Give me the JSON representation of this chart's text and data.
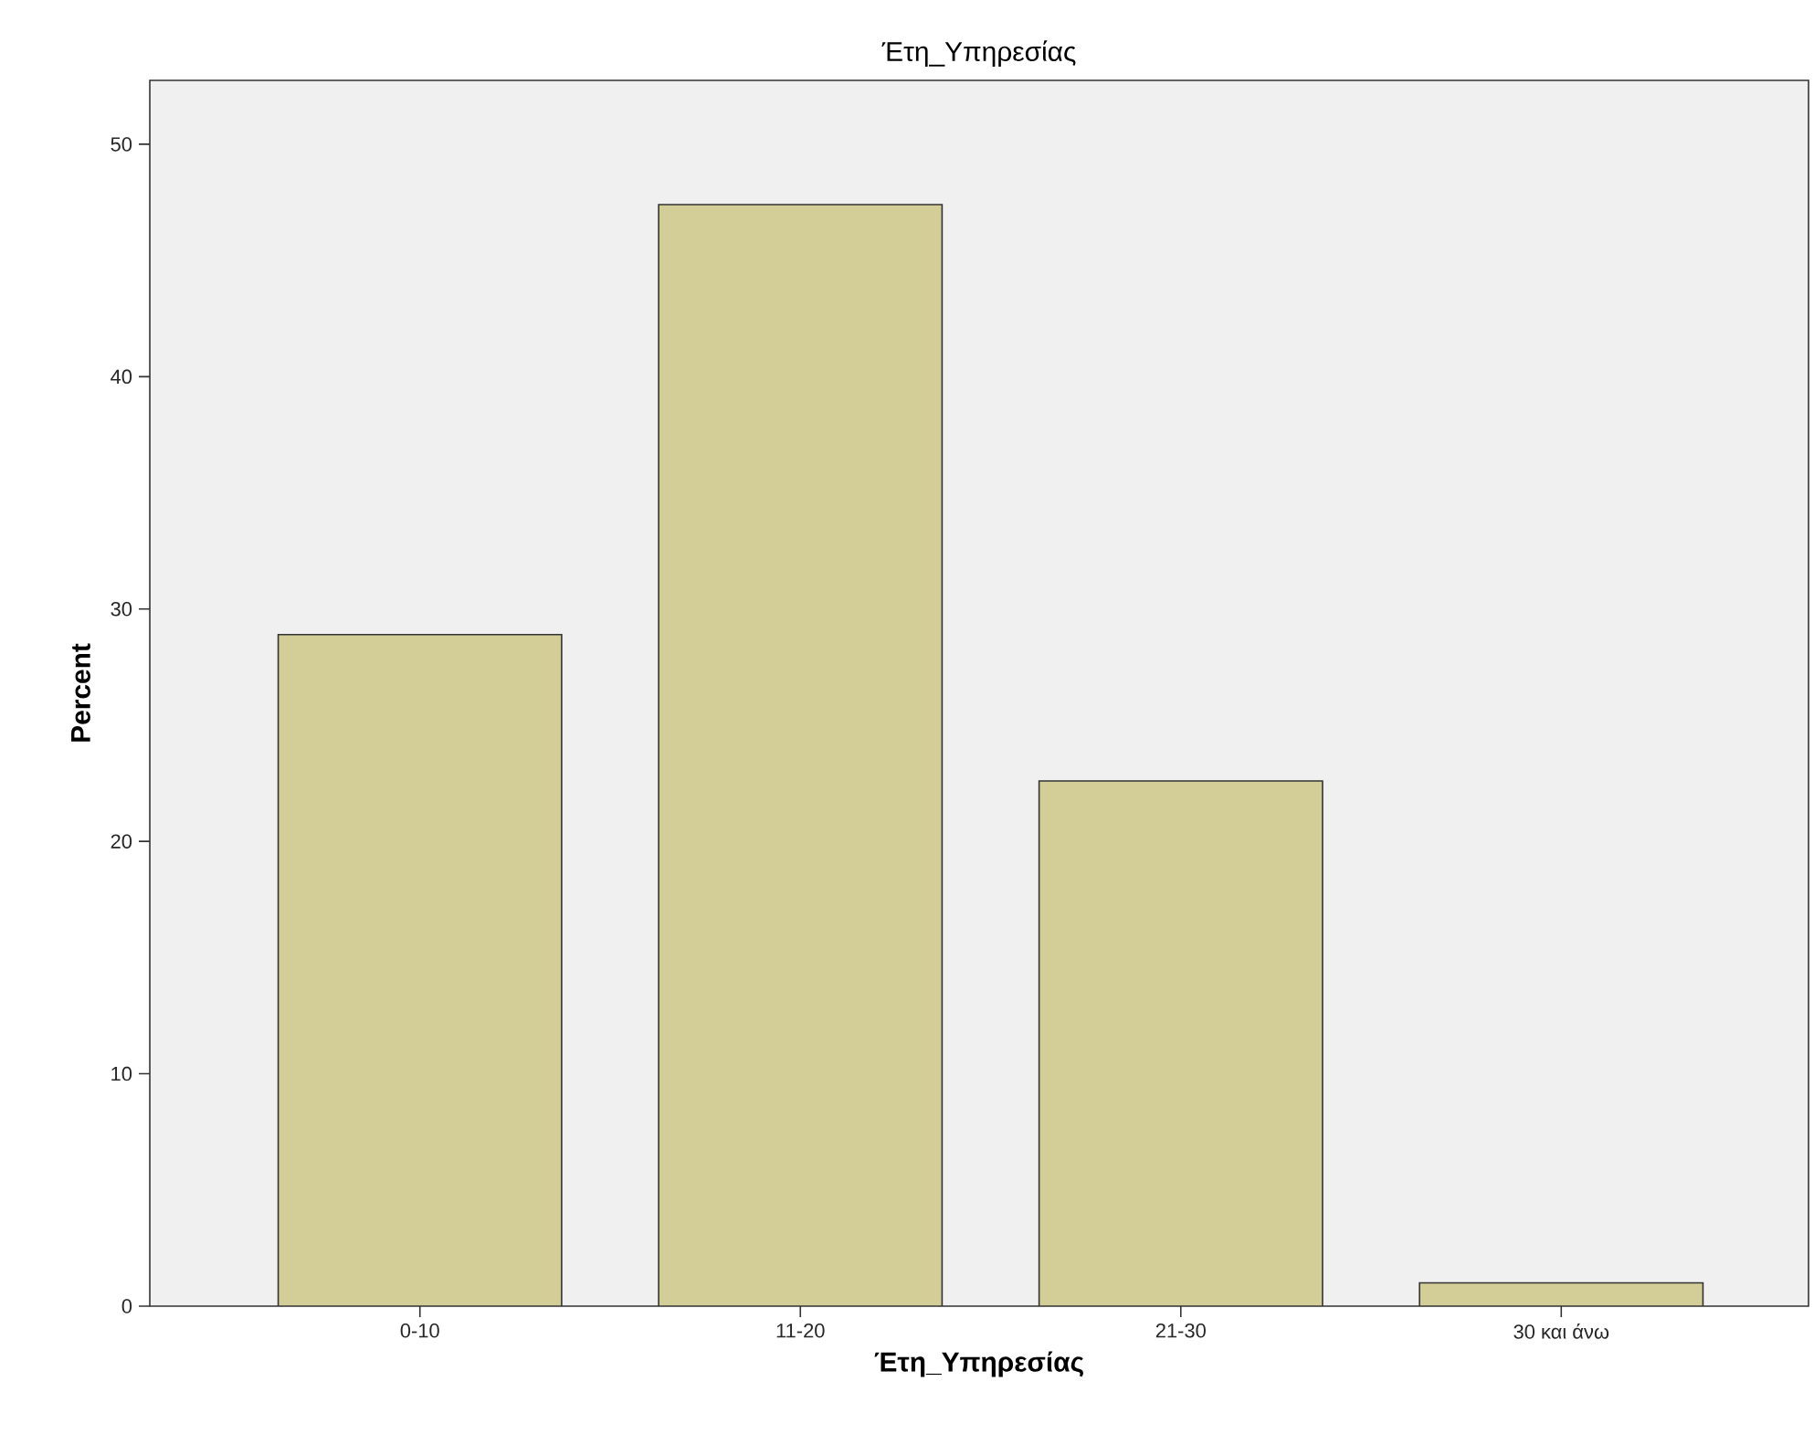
{
  "chart_data": {
    "type": "bar",
    "title": "Έτη_Υπηρεσίας",
    "xlabel": "Έτη_Υπηρεσίας",
    "ylabel": "Percent",
    "categories": [
      "0-10",
      "11-20",
      "21-30",
      "30 και άνω"
    ],
    "values": [
      28.9,
      47.4,
      22.6,
      1.0
    ],
    "color": "#d3ce97",
    "ylim": [
      0,
      52.75
    ],
    "yticks": [
      0,
      10,
      20,
      30,
      40,
      50
    ]
  }
}
